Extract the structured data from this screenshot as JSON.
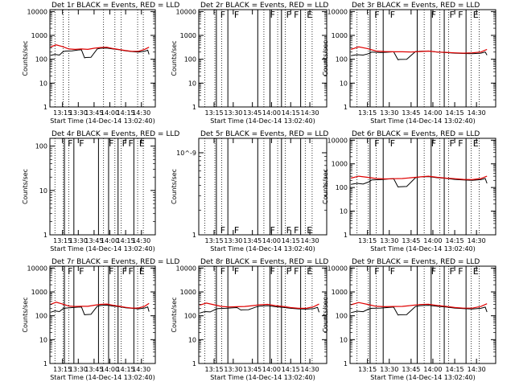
{
  "figure": {
    "xlabel": "Start Time (14-Dec-14 13:02:40)",
    "ylabel": "Counts/sec",
    "xticks": [
      {
        "t": 13.25,
        "label": "13:15"
      },
      {
        "t": 13.5,
        "label": "13:30"
      },
      {
        "t": 13.75,
        "label": "13:45"
      },
      {
        "t": 14.0,
        "label": "14:00"
      },
      {
        "t": 14.25,
        "label": "14:15"
      },
      {
        "t": 14.5,
        "label": "14:30"
      }
    ],
    "xlim": [
      13.05,
      14.72
    ],
    "dotted_lines": [
      13.13,
      13.26,
      13.35,
      13.9,
      14.08,
      14.18,
      14.44,
      14.53
    ],
    "solid_lines": [
      13.28,
      13.43,
      13.82,
      13.98,
      14.13,
      14.38
    ],
    "flags": [
      {
        "t": 13.04,
        "letter": "E"
      },
      {
        "t": 13.32,
        "letter": "F"
      },
      {
        "t": 13.5,
        "letter": "F"
      },
      {
        "t": 13.97,
        "letter": "F"
      },
      {
        "t": 14.18,
        "letter": "F"
      },
      {
        "t": 14.28,
        "letter": "F"
      },
      {
        "t": 14.45,
        "letter": "E"
      }
    ],
    "colors": {
      "events": "#000000",
      "lld": "#e00000",
      "axes": "#000000"
    }
  },
  "chart_data": [
    {
      "type": "line",
      "title": "Det 1r BLACK = Events, RED = LLD",
      "yscale": "log",
      "ylim": [
        1,
        12000
      ],
      "yticklabels": [
        "1",
        "10",
        "100",
        "1000",
        "10000"
      ],
      "has_data": true,
      "flags_shown": false,
      "series": [
        {
          "name": "Events",
          "color": "#000000",
          "x": [
            13.06,
            13.13,
            13.2,
            13.26,
            13.3,
            13.4,
            13.5,
            13.55,
            13.6,
            13.62,
            13.7,
            13.8,
            13.85,
            13.95,
            14.05,
            14.15,
            14.25,
            14.35,
            14.45,
            14.55,
            14.6,
            14.62
          ],
          "y": [
            145,
            160,
            150,
            210,
            220,
            225,
            245,
            250,
            115,
            118,
            120,
            270,
            290,
            295,
            270,
            250,
            225,
            210,
            200,
            215,
            240,
            160
          ]
        },
        {
          "name": "LLD",
          "color": "#e00000",
          "x": [
            13.06,
            13.15,
            13.25,
            13.35,
            13.45,
            13.55,
            13.65,
            13.75,
            13.85,
            13.95,
            14.05,
            14.15,
            14.25,
            14.35,
            14.45,
            14.55,
            14.62
          ],
          "y": [
            330,
            400,
            340,
            270,
            260,
            270,
            260,
            290,
            310,
            320,
            280,
            255,
            230,
            215,
            215,
            260,
            320
          ]
        }
      ]
    },
    {
      "type": "line",
      "title": "Det 2r BLACK = Events, RED = LLD",
      "yscale": "log",
      "ylim": [
        1,
        12000
      ],
      "yticklabels": [
        "1",
        "10",
        "100",
        "1000",
        "10000"
      ],
      "has_data": false,
      "flags_shown": true,
      "flags_position": "top",
      "series": []
    },
    {
      "type": "line",
      "title": "Det 3r BLACK = Events, RED = LLD",
      "yscale": "log",
      "ylim": [
        1,
        12000
      ],
      "yticklabels": [
        "1",
        "10",
        "100",
        "1000",
        "10000"
      ],
      "has_data": true,
      "flags_shown": true,
      "flags_position": "top",
      "series": [
        {
          "name": "Events",
          "color": "#000000",
          "x": [
            13.06,
            13.13,
            13.2,
            13.26,
            13.3,
            13.4,
            13.5,
            13.55,
            13.6,
            13.62,
            13.7,
            13.8,
            13.85,
            13.95,
            14.05,
            14.15,
            14.25,
            14.35,
            14.45,
            14.55,
            14.6,
            14.62
          ],
          "y": [
            140,
            155,
            150,
            170,
            200,
            190,
            200,
            205,
            95,
            98,
            100,
            210,
            215,
            220,
            200,
            190,
            180,
            175,
            170,
            180,
            200,
            150
          ]
        },
        {
          "name": "LLD",
          "color": "#e00000",
          "x": [
            13.06,
            13.15,
            13.25,
            13.35,
            13.45,
            13.55,
            13.65,
            13.75,
            13.85,
            13.95,
            14.05,
            14.15,
            14.25,
            14.35,
            14.45,
            14.55,
            14.62
          ],
          "y": [
            260,
            330,
            280,
            220,
            210,
            205,
            205,
            200,
            210,
            220,
            200,
            195,
            185,
            180,
            185,
            200,
            260
          ]
        }
      ]
    },
    {
      "type": "line",
      "title": "Det 4r BLACK = Events, RED = LLD",
      "yscale": "log",
      "ylim": [
        1,
        150
      ],
      "yticklabels": [
        "1",
        "10",
        "100"
      ],
      "has_data": false,
      "flags_shown": true,
      "flags_position": "top",
      "series": []
    },
    {
      "type": "line",
      "title": "Det 5r BLACK = Events, RED = LLD",
      "yscale": "log",
      "ylim": [
        1e-10,
        1.5e-09
      ],
      "yticklabels": [
        "1",
        "10^-9"
      ],
      "has_data": false,
      "flags_shown": true,
      "flags_position": "bottom",
      "series": []
    },
    {
      "type": "line",
      "title": "Det 6r BLACK = Events, RED = LLD",
      "yscale": "log",
      "ylim": [
        1,
        12000
      ],
      "yticklabels": [
        "1",
        "10",
        "100",
        "1000",
        "10000"
      ],
      "has_data": true,
      "flags_shown": true,
      "flags_position": "top",
      "series": [
        {
          "name": "Events",
          "color": "#000000",
          "x": [
            13.06,
            13.13,
            13.2,
            13.26,
            13.3,
            13.4,
            13.5,
            13.55,
            13.6,
            13.62,
            13.7,
            13.8,
            13.85,
            13.95,
            14.05,
            14.15,
            14.25,
            14.35,
            14.45,
            14.55,
            14.6,
            14.62
          ],
          "y": [
            135,
            150,
            140,
            170,
            210,
            215,
            230,
            235,
            105,
            108,
            110,
            260,
            280,
            290,
            260,
            245,
            220,
            210,
            200,
            215,
            240,
            150
          ]
        },
        {
          "name": "LLD",
          "color": "#e00000",
          "x": [
            13.06,
            13.15,
            13.25,
            13.35,
            13.45,
            13.55,
            13.65,
            13.75,
            13.85,
            13.95,
            14.05,
            14.15,
            14.25,
            14.35,
            14.45,
            14.55,
            14.62
          ],
          "y": [
            250,
            300,
            270,
            240,
            230,
            235,
            240,
            260,
            280,
            300,
            270,
            250,
            235,
            220,
            215,
            240,
            300
          ]
        }
      ]
    },
    {
      "type": "line",
      "title": "Det 7r BLACK = Events, RED = LLD",
      "yscale": "log",
      "ylim": [
        1,
        12000
      ],
      "yticklabels": [
        "1",
        "10",
        "100",
        "1000",
        "10000"
      ],
      "has_data": true,
      "flags_shown": true,
      "flags_position": "top",
      "series": [
        {
          "name": "Events",
          "color": "#000000",
          "x": [
            13.06,
            13.13,
            13.2,
            13.26,
            13.3,
            13.4,
            13.5,
            13.55,
            13.6,
            13.62,
            13.7,
            13.8,
            13.85,
            13.95,
            14.05,
            14.15,
            14.25,
            14.35,
            14.45,
            14.55,
            14.6,
            14.62
          ],
          "y": [
            140,
            160,
            150,
            200,
            210,
            220,
            230,
            235,
            110,
            112,
            115,
            250,
            270,
            280,
            255,
            240,
            215,
            205,
            195,
            210,
            235,
            150
          ]
        },
        {
          "name": "LLD",
          "color": "#e00000",
          "x": [
            13.06,
            13.15,
            13.25,
            13.35,
            13.45,
            13.55,
            13.65,
            13.75,
            13.85,
            13.95,
            14.05,
            14.15,
            14.25,
            14.35,
            14.45,
            14.55,
            14.62
          ],
          "y": [
            300,
            370,
            310,
            255,
            245,
            250,
            250,
            275,
            300,
            310,
            275,
            250,
            225,
            210,
            210,
            250,
            330
          ]
        }
      ]
    },
    {
      "type": "line",
      "title": "Det 8r BLACK = Events, RED = LLD",
      "yscale": "log",
      "ylim": [
        1,
        12000
      ],
      "yticklabels": [
        "1",
        "10",
        "100",
        "1000",
        "10000"
      ],
      "has_data": true,
      "flags_shown": true,
      "flags_position": "top",
      "series": [
        {
          "name": "Events",
          "color": "#000000",
          "x": [
            13.06,
            13.13,
            13.2,
            13.26,
            13.3,
            13.4,
            13.5,
            13.55,
            13.6,
            13.62,
            13.7,
            13.8,
            13.85,
            13.95,
            14.05,
            14.15,
            14.25,
            14.35,
            14.45,
            14.55,
            14.6,
            14.62
          ],
          "y": [
            130,
            150,
            145,
            180,
            200,
            205,
            215,
            220,
            175,
            178,
            180,
            235,
            255,
            265,
            240,
            225,
            205,
            195,
            190,
            200,
            225,
            140
          ]
        },
        {
          "name": "LLD",
          "color": "#e00000",
          "x": [
            13.06,
            13.15,
            13.25,
            13.35,
            13.45,
            13.55,
            13.65,
            13.75,
            13.85,
            13.95,
            14.05,
            14.15,
            14.25,
            14.35,
            14.45,
            14.55,
            14.62
          ],
          "y": [
            280,
            340,
            290,
            245,
            235,
            240,
            245,
            265,
            290,
            300,
            265,
            245,
            220,
            205,
            205,
            240,
            310
          ]
        }
      ]
    },
    {
      "type": "line",
      "title": "Det 9r BLACK = Events, RED = LLD",
      "yscale": "log",
      "ylim": [
        1,
        12000
      ],
      "yticklabels": [
        "1",
        "10",
        "100",
        "1000",
        "10000"
      ],
      "has_data": true,
      "flags_shown": true,
      "flags_position": "top",
      "series": [
        {
          "name": "Events",
          "color": "#000000",
          "x": [
            13.06,
            13.13,
            13.2,
            13.26,
            13.3,
            13.4,
            13.5,
            13.55,
            13.6,
            13.62,
            13.7,
            13.8,
            13.85,
            13.95,
            14.05,
            14.15,
            14.25,
            14.35,
            14.45,
            14.55,
            14.6,
            14.62
          ],
          "y": [
            135,
            155,
            148,
            190,
            205,
            210,
            225,
            230,
            108,
            110,
            112,
            245,
            265,
            275,
            250,
            235,
            210,
            200,
            192,
            205,
            230,
            145
          ]
        },
        {
          "name": "LLD",
          "color": "#e00000",
          "x": [
            13.06,
            13.15,
            13.25,
            13.35,
            13.45,
            13.55,
            13.65,
            13.75,
            13.85,
            13.95,
            14.05,
            14.15,
            14.25,
            14.35,
            14.45,
            14.55,
            14.62
          ],
          "y": [
            290,
            360,
            300,
            250,
            240,
            245,
            248,
            270,
            295,
            305,
            270,
            248,
            222,
            208,
            208,
            245,
            320
          ]
        }
      ]
    }
  ]
}
